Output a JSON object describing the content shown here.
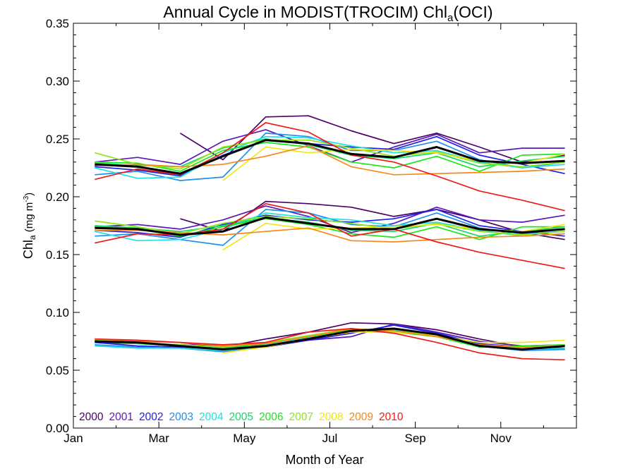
{
  "chart_data": {
    "type": "line",
    "title": "Annual Cycle in MODIST(TROCIM) Chl",
    "title_sub": "a",
    "title_tail": "(OCI)",
    "xlabel": "Month of Year",
    "ylabel_main": "Chl",
    "ylabel_sub": "a",
    "ylabel_units": " (mg m",
    "ylabel_sup": "-3",
    "ylabel_close": ")",
    "xlim": [
      1,
      12.77
    ],
    "ylim": [
      0,
      0.35
    ],
    "x_ticks": [
      {
        "value": 1,
        "label": "Jan"
      },
      {
        "value": 3,
        "label": "Mar"
      },
      {
        "value": 5,
        "label": "May"
      },
      {
        "value": 7,
        "label": "Jul"
      },
      {
        "value": 9,
        "label": "Sep"
      },
      {
        "value": 11,
        "label": "Nov"
      }
    ],
    "y_ticks": [
      0,
      0.05,
      0.1,
      0.15,
      0.2,
      0.25,
      0.3,
      0.35
    ],
    "y_tick_labels": [
      "0.00",
      "0.05",
      "0.10",
      "0.15",
      "0.20",
      "0.25",
      "0.30",
      "0.35"
    ],
    "x": [
      1.5,
      2.5,
      3.5,
      4.5,
      5.5,
      6.5,
      7.5,
      8.5,
      9.5,
      10.5,
      11.5,
      12.5
    ],
    "legend_placement": "bottom-left",
    "groups": [
      "upper",
      "middle",
      "lower"
    ],
    "series": [
      {
        "name": "2000",
        "color": "#4B0066",
        "upper": [
          null,
          null,
          0.255,
          0.232,
          0.269,
          0.27,
          0.257,
          0.246,
          0.255,
          0.243,
          0.23,
          0.236
        ],
        "middle": [
          null,
          null,
          0.181,
          0.17,
          0.196,
          0.194,
          0.191,
          0.183,
          0.189,
          0.18,
          0.169,
          0.163
        ],
        "lower": [
          null,
          null,
          0.074,
          0.07,
          0.077,
          0.083,
          0.091,
          0.09,
          0.085,
          0.077,
          0.07,
          0.068
        ]
      },
      {
        "name": "2001",
        "color": "#5B1AB8",
        "upper": [
          0.23,
          0.234,
          0.228,
          0.248,
          0.258,
          0.244,
          0.23,
          0.243,
          0.254,
          0.238,
          0.242,
          0.242
        ],
        "middle": [
          0.174,
          0.176,
          0.172,
          0.18,
          0.192,
          0.183,
          0.169,
          0.177,
          0.191,
          0.18,
          0.178,
          0.184
        ],
        "lower": [
          0.074,
          0.073,
          0.072,
          0.071,
          0.072,
          0.076,
          0.079,
          0.09,
          0.083,
          0.075,
          0.071,
          0.072
        ]
      },
      {
        "name": "2002",
        "color": "#1F1FE6",
        "upper": [
          0.226,
          0.223,
          0.218,
          0.236,
          0.249,
          0.246,
          0.243,
          0.241,
          0.252,
          0.236,
          0.228,
          0.22
        ],
        "middle": [
          0.171,
          0.169,
          0.165,
          0.176,
          0.184,
          0.18,
          0.178,
          0.181,
          0.189,
          0.175,
          0.17,
          0.166
        ],
        "lower": [
          0.074,
          0.071,
          0.07,
          0.068,
          0.07,
          0.076,
          0.082,
          0.089,
          0.082,
          0.073,
          0.07,
          0.069
        ]
      },
      {
        "name": "2003",
        "color": "#1E8FEF",
        "upper": [
          0.219,
          0.222,
          0.214,
          0.217,
          0.255,
          0.252,
          0.24,
          0.24,
          0.248,
          0.232,
          0.225,
          0.23
        ],
        "middle": [
          0.166,
          0.168,
          0.163,
          0.158,
          0.189,
          0.186,
          0.176,
          0.174,
          0.186,
          0.173,
          0.168,
          0.17
        ],
        "lower": [
          0.072,
          0.07,
          0.069,
          0.066,
          0.071,
          0.078,
          0.084,
          0.086,
          0.081,
          0.071,
          0.067,
          0.068
        ]
      },
      {
        "name": "2004",
        "color": "#22E0E0",
        "upper": [
          0.225,
          0.216,
          0.217,
          0.238,
          0.252,
          0.251,
          0.244,
          0.238,
          0.24,
          0.23,
          0.225,
          0.228
        ],
        "middle": [
          0.17,
          0.162,
          0.163,
          0.172,
          0.186,
          0.182,
          0.18,
          0.175,
          0.178,
          0.171,
          0.166,
          0.168
        ],
        "lower": [
          0.071,
          0.069,
          0.069,
          0.067,
          0.072,
          0.078,
          0.084,
          0.085,
          0.08,
          0.071,
          0.068,
          0.069
        ]
      },
      {
        "name": "2005",
        "color": "#15D96A",
        "upper": [
          0.229,
          0.227,
          0.226,
          0.242,
          0.25,
          0.245,
          0.236,
          0.233,
          0.238,
          0.226,
          0.231,
          0.235
        ],
        "middle": [
          0.175,
          0.173,
          0.17,
          0.175,
          0.182,
          0.178,
          0.171,
          0.17,
          0.177,
          0.166,
          0.17,
          0.174
        ],
        "lower": [
          0.075,
          0.073,
          0.071,
          0.069,
          0.073,
          0.08,
          0.085,
          0.084,
          0.081,
          0.071,
          0.07,
          0.072
        ]
      },
      {
        "name": "2006",
        "color": "#1AE61A",
        "upper": [
          0.23,
          0.229,
          0.222,
          0.24,
          0.247,
          0.243,
          0.23,
          0.225,
          0.235,
          0.222,
          0.236,
          0.237
        ],
        "middle": [
          0.174,
          0.172,
          0.166,
          0.174,
          0.181,
          0.176,
          0.168,
          0.165,
          0.174,
          0.163,
          0.174,
          0.174
        ],
        "lower": [
          0.075,
          0.073,
          0.071,
          0.069,
          0.073,
          0.079,
          0.085,
          0.083,
          0.079,
          0.07,
          0.071,
          0.072
        ]
      },
      {
        "name": "2007",
        "color": "#8FE61A",
        "upper": [
          0.238,
          0.228,
          0.224,
          0.243,
          0.249,
          0.249,
          0.242,
          0.235,
          0.239,
          0.229,
          0.226,
          0.23
        ],
        "middle": [
          0.179,
          0.174,
          0.168,
          0.177,
          0.183,
          0.181,
          0.177,
          0.172,
          0.177,
          0.17,
          0.167,
          0.17
        ],
        "lower": [
          0.076,
          0.074,
          0.072,
          0.07,
          0.074,
          0.08,
          0.086,
          0.084,
          0.08,
          0.072,
          0.069,
          0.072
        ]
      },
      {
        "name": "2008",
        "color": "#F2E61A",
        "upper": [
          null,
          null,
          null,
          0.214,
          0.243,
          0.238,
          0.241,
          0.24,
          0.238,
          0.231,
          0.229,
          0.237
        ],
        "middle": [
          null,
          null,
          null,
          0.154,
          0.177,
          0.172,
          0.173,
          0.174,
          0.176,
          0.172,
          0.17,
          0.176
        ],
        "lower": [
          null,
          null,
          null,
          0.065,
          0.07,
          0.077,
          0.083,
          0.083,
          0.08,
          0.074,
          0.074,
          0.076
        ]
      },
      {
        "name": "2009",
        "color": "#F58A1A",
        "upper": [
          0.227,
          0.228,
          0.226,
          0.228,
          0.235,
          0.244,
          0.226,
          0.219,
          0.22,
          0.221,
          0.222,
          0.224
        ],
        "middle": [
          0.171,
          0.171,
          0.169,
          0.167,
          0.17,
          0.173,
          0.162,
          0.161,
          0.163,
          0.165,
          0.166,
          0.168
        ],
        "lower": [
          0.077,
          0.075,
          0.074,
          0.071,
          0.073,
          0.079,
          0.086,
          0.084,
          0.079,
          0.072,
          0.07,
          0.071
        ]
      },
      {
        "name": "2010",
        "color": "#EE1A1A",
        "upper": [
          0.215,
          0.224,
          0.219,
          0.238,
          0.264,
          0.256,
          0.236,
          0.23,
          0.218,
          0.205,
          0.197,
          0.188
        ],
        "middle": [
          0.16,
          0.168,
          0.167,
          0.172,
          0.194,
          0.186,
          0.166,
          0.172,
          0.161,
          0.152,
          0.145,
          0.138
        ],
        "lower": [
          0.077,
          0.076,
          0.074,
          0.072,
          0.074,
          0.083,
          0.086,
          0.082,
          0.074,
          0.065,
          0.06,
          0.059
        ]
      }
    ],
    "mean_series": {
      "color": "#000000",
      "upper": [
        0.228,
        0.226,
        0.22,
        0.235,
        0.249,
        0.246,
        0.237,
        0.234,
        0.243,
        0.231,
        0.229,
        0.231
      ],
      "middle": [
        0.173,
        0.172,
        0.167,
        0.17,
        0.182,
        0.177,
        0.172,
        0.172,
        0.181,
        0.172,
        0.169,
        0.172
      ],
      "lower": [
        0.075,
        0.074,
        0.071,
        0.068,
        0.071,
        0.077,
        0.084,
        0.086,
        0.081,
        0.071,
        0.068,
        0.071
      ]
    }
  }
}
